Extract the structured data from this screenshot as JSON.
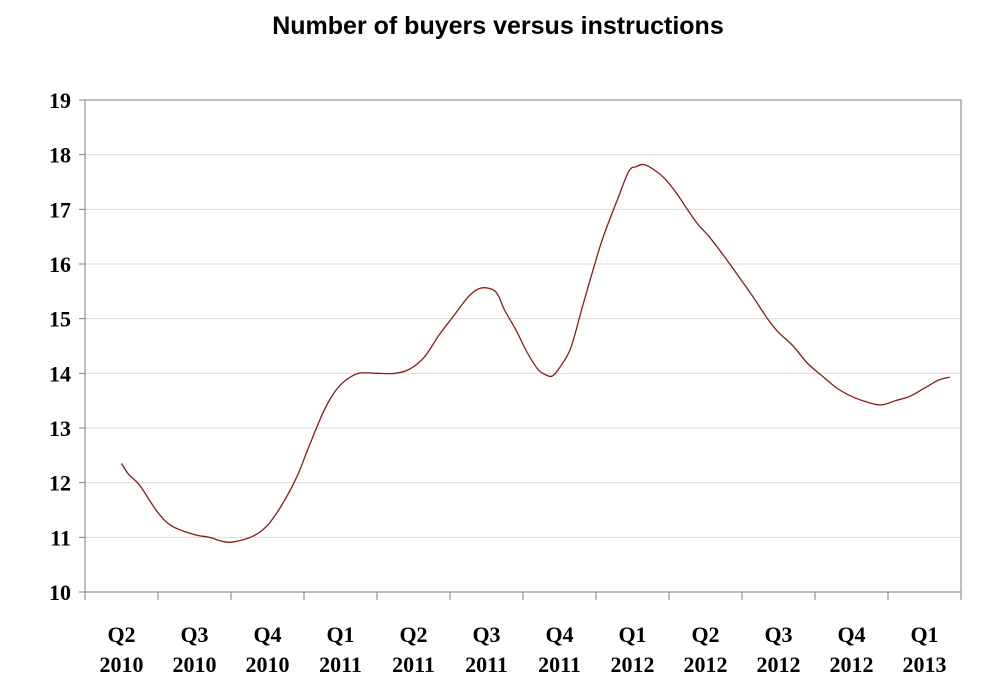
{
  "chart_data": {
    "type": "line",
    "title": "Number of buyers versus instructions",
    "xlabel": "",
    "ylabel": "",
    "ylim": [
      10,
      19
    ],
    "yticks": [
      10,
      11,
      12,
      13,
      14,
      15,
      16,
      17,
      18,
      19
    ],
    "grid": true,
    "categories": [
      {
        "quarter": "Q2",
        "year": "2010"
      },
      {
        "quarter": "Q3",
        "year": "2010"
      },
      {
        "quarter": "Q4",
        "year": "2010"
      },
      {
        "quarter": "Q1",
        "year": "2011"
      },
      {
        "quarter": "Q2",
        "year": "2011"
      },
      {
        "quarter": "Q3",
        "year": "2011"
      },
      {
        "quarter": "Q4",
        "year": "2011"
      },
      {
        "quarter": "Q1",
        "year": "2012"
      },
      {
        "quarter": "Q2",
        "year": "2012"
      },
      {
        "quarter": "Q3",
        "year": "2012"
      },
      {
        "quarter": "Q4",
        "year": "2012"
      },
      {
        "quarter": "Q1",
        "year": "2013"
      }
    ],
    "series": [
      {
        "color": "#8b1a1a",
        "points": [
          [
            0.5,
            12.35
          ],
          [
            0.6,
            12.15
          ],
          [
            0.75,
            11.95
          ],
          [
            1.0,
            11.45
          ],
          [
            1.2,
            11.2
          ],
          [
            1.5,
            11.05
          ],
          [
            1.7,
            11.0
          ],
          [
            1.9,
            10.92
          ],
          [
            2.05,
            10.92
          ],
          [
            2.3,
            11.02
          ],
          [
            2.5,
            11.22
          ],
          [
            2.7,
            11.6
          ],
          [
            2.9,
            12.1
          ],
          [
            3.05,
            12.6
          ],
          [
            3.25,
            13.25
          ],
          [
            3.4,
            13.62
          ],
          [
            3.55,
            13.85
          ],
          [
            3.75,
            14.0
          ],
          [
            4.0,
            14.0
          ],
          [
            4.25,
            14.0
          ],
          [
            4.45,
            14.08
          ],
          [
            4.65,
            14.3
          ],
          [
            4.85,
            14.7
          ],
          [
            5.05,
            15.05
          ],
          [
            5.25,
            15.4
          ],
          [
            5.4,
            15.55
          ],
          [
            5.55,
            15.55
          ],
          [
            5.65,
            15.45
          ],
          [
            5.75,
            15.15
          ],
          [
            5.9,
            14.8
          ],
          [
            6.05,
            14.4
          ],
          [
            6.2,
            14.08
          ],
          [
            6.3,
            13.98
          ],
          [
            6.4,
            13.95
          ],
          [
            6.5,
            14.1
          ],
          [
            6.65,
            14.45
          ],
          [
            6.8,
            15.15
          ],
          [
            6.95,
            15.85
          ],
          [
            7.1,
            16.5
          ],
          [
            7.3,
            17.2
          ],
          [
            7.45,
            17.7
          ],
          [
            7.55,
            17.78
          ],
          [
            7.65,
            17.82
          ],
          [
            7.8,
            17.72
          ],
          [
            7.95,
            17.55
          ],
          [
            8.1,
            17.3
          ],
          [
            8.25,
            17.0
          ],
          [
            8.4,
            16.72
          ],
          [
            8.55,
            16.5
          ],
          [
            8.75,
            16.15
          ],
          [
            8.95,
            15.78
          ],
          [
            9.15,
            15.4
          ],
          [
            9.35,
            15.0
          ],
          [
            9.5,
            14.75
          ],
          [
            9.7,
            14.5
          ],
          [
            9.9,
            14.18
          ],
          [
            10.1,
            13.95
          ],
          [
            10.3,
            13.73
          ],
          [
            10.5,
            13.58
          ],
          [
            10.7,
            13.48
          ],
          [
            10.9,
            13.42
          ],
          [
            11.1,
            13.5
          ],
          [
            11.3,
            13.58
          ],
          [
            11.5,
            13.73
          ],
          [
            11.7,
            13.88
          ],
          [
            11.85,
            13.93
          ]
        ]
      }
    ]
  }
}
